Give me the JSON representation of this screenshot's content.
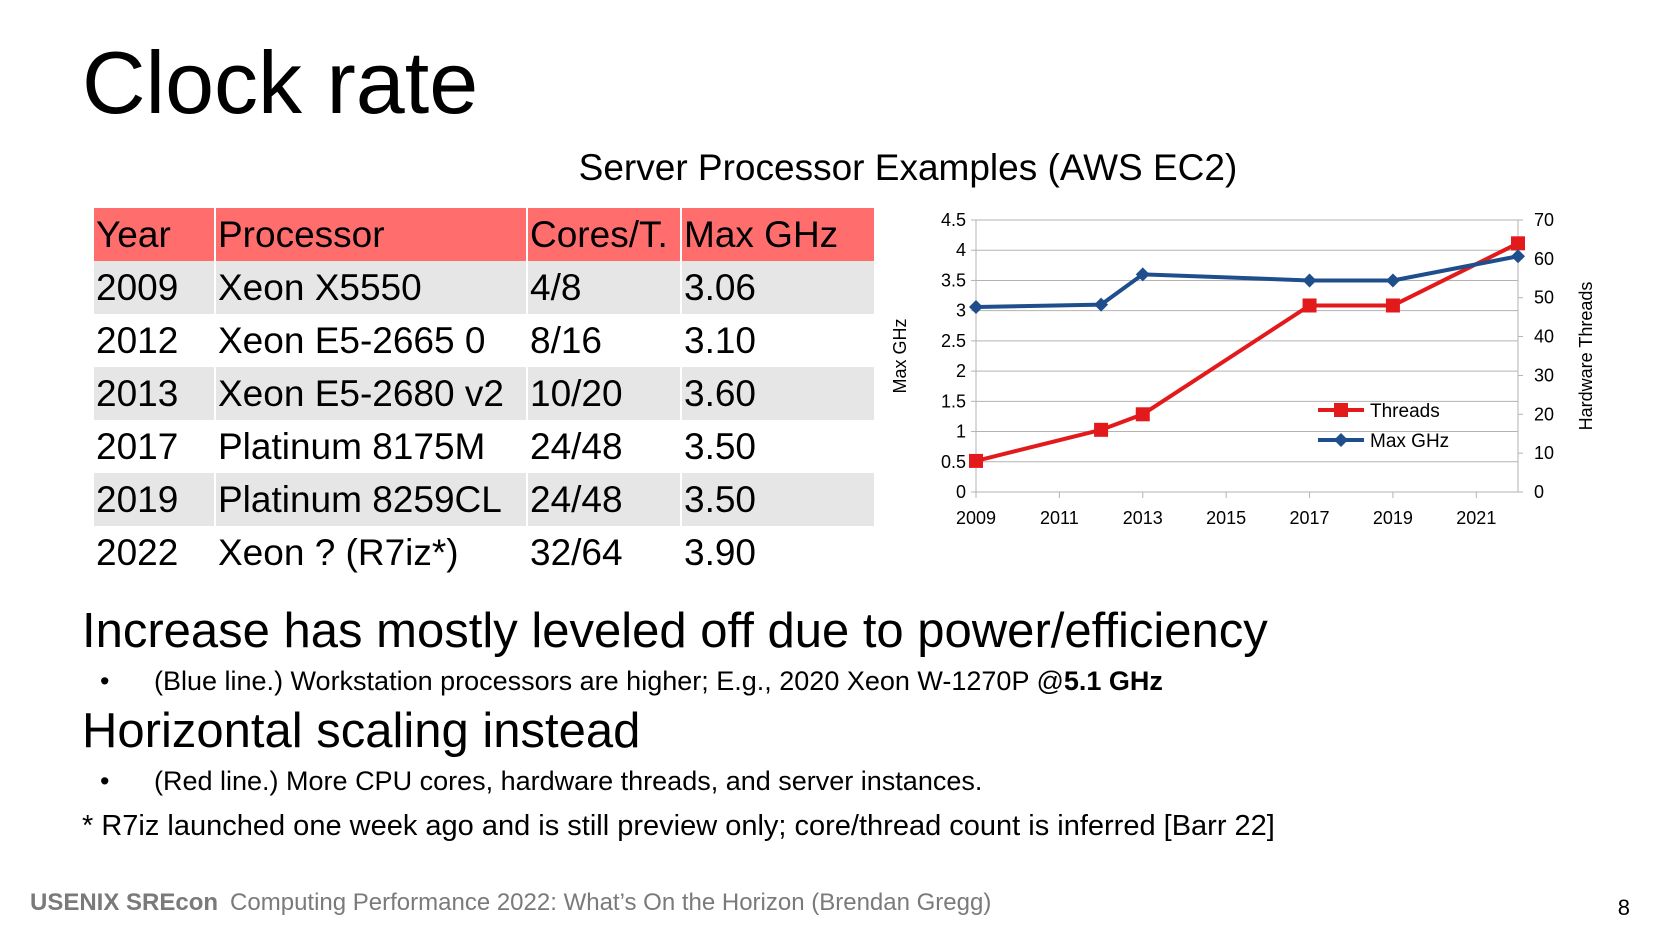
{
  "slide": {
    "title": "Clock rate",
    "subtitle": "Server Processor Examples (AWS EC2)",
    "table": {
      "headers": [
        "Year",
        "Processor",
        "Cores/T.",
        "Max GHz"
      ],
      "rows": [
        [
          "2009",
          "Xeon X5550",
          "4/8",
          "3.06"
        ],
        [
          "2012",
          "Xeon E5-2665 0",
          "8/16",
          "3.10"
        ],
        [
          "2013",
          "Xeon E5-2680 v2",
          "10/20",
          "3.60"
        ],
        [
          "2017",
          "Platinum 8175M",
          "24/48",
          "3.50"
        ],
        [
          "2019",
          "Platinum 8259CL",
          "24/48",
          "3.50"
        ],
        [
          "2022",
          "Xeon ? (R7iz*)",
          "32/64",
          "3.90"
        ]
      ]
    },
    "heading1": "Increase has mostly leveled off due to power/efficiency",
    "bullet1": {
      "marker": "•",
      "text": "(Blue line.) Workstation processors are higher; E.g., 2020 Xeon W-1270P @",
      "bold": "5.1 GHz"
    },
    "heading2": "Horizontal scaling instead",
    "bullet2": {
      "marker": "•",
      "text": "(Red line.) More CPU cores, hardware threads, and server instances."
    },
    "footnote": "* R7iz launched one week ago and is still preview only; core/thread count is inferred [Barr 22]",
    "footer": {
      "brand": "USENIX SREcon",
      "text": "Computing Performance 2022: What’s On the Horizon (Brendan Gregg)"
    },
    "page_number": "8"
  },
  "chart_data": {
    "type": "line",
    "title": "",
    "x": [
      2009,
      2012,
      2013,
      2017,
      2019,
      2022
    ],
    "xticks": [
      2009,
      2011,
      2013,
      2015,
      2017,
      2019,
      2021
    ],
    "xlim": [
      2009,
      2022
    ],
    "ylabel": "Max GHz",
    "ylim": [
      0,
      4.5
    ],
    "yticks": [
      0,
      0.5,
      1,
      1.5,
      2,
      2.5,
      3,
      3.5,
      4,
      4.5
    ],
    "ylabel_right": "Hardware Threads",
    "ylim_right": [
      0,
      70
    ],
    "yticks_right": [
      0,
      10,
      20,
      30,
      40,
      50,
      60,
      70
    ],
    "grid": true,
    "legend_position": "right",
    "series": [
      {
        "name": "Threads",
        "axis": "right",
        "color": "#e31a1c",
        "marker": "square",
        "values": [
          8,
          16,
          20,
          48,
          48,
          64
        ]
      },
      {
        "name": "Max GHz",
        "axis": "left",
        "color": "#1f4e8c",
        "marker": "diamond",
        "values": [
          3.06,
          3.1,
          3.6,
          3.5,
          3.5,
          3.9
        ]
      }
    ]
  }
}
